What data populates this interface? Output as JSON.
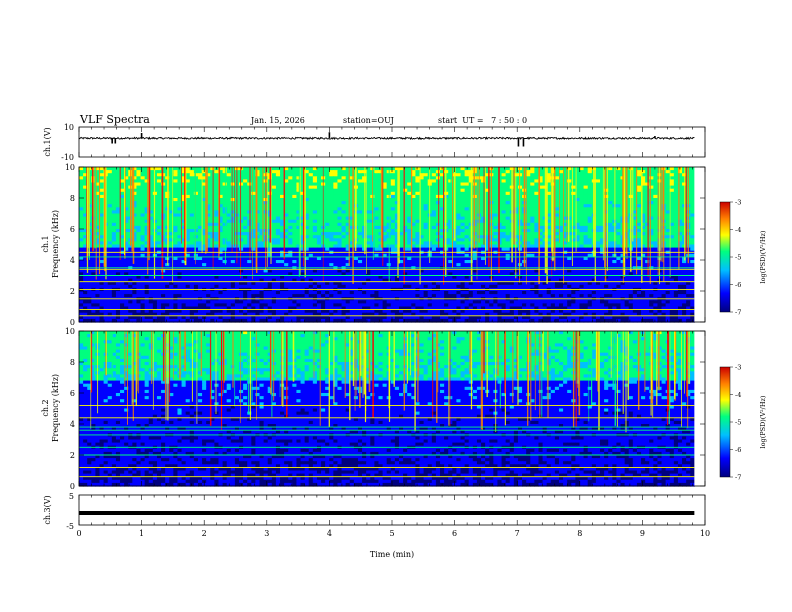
{
  "header": {
    "title": "VLF Spectra",
    "date": "Jan. 15, 2026",
    "station": "station=OUJ",
    "start_ut": "start  UT =   7 : 50 : 0"
  },
  "chart_data": [
    {
      "type": "line",
      "panel": "ch1-waveform",
      "ylabel": "ch.1(V)",
      "ylim": [
        -10,
        10
      ],
      "yticks": [
        "10",
        "-10"
      ],
      "baseline": 2.5,
      "spikes": [
        {
          "t": 0.53,
          "v": -1.0
        },
        {
          "t": 0.58,
          "v": -1.0
        },
        {
          "t": 1.0,
          "v": 6.0
        },
        {
          "t": 4.0,
          "v": 6.5
        },
        {
          "t": 7.02,
          "v": -3.0
        },
        {
          "t": 7.1,
          "v": -3.0
        },
        {
          "t": 9.2,
          "v": 4.0
        }
      ],
      "xlim": [
        0,
        10
      ],
      "color": "#000000"
    },
    {
      "type": "heatmap",
      "panel": "ch1-spectrogram",
      "ylabel": "ch.1\nFrequency (kHz)",
      "ylabel_lines": [
        "ch.1",
        "Frequency (kHz)"
      ],
      "xlim": [
        0,
        10
      ],
      "ylim": [
        0,
        10
      ],
      "yticks": [
        "0",
        "2",
        "4",
        "6",
        "8",
        "10"
      ],
      "data_extent_min": 9.83,
      "colorbar": {
        "label": "log(PSD)(V²/Hz)",
        "range": [
          -7,
          -3
        ],
        "ticks": [
          "-3",
          "-4",
          "-5",
          "-6",
          "-7"
        ]
      },
      "background_boundary_khz": 4.8,
      "narrowband_lines_khz": [
        0.4,
        0.8,
        1.5,
        2.1,
        2.6,
        3.0,
        3.4,
        3.5,
        4.2,
        4.5
      ],
      "color_scale": [
        "#00007f",
        "#0000ff",
        "#00bfff",
        "#00ff7f",
        "#ffff00",
        "#ff7f00",
        "#ff0000"
      ]
    },
    {
      "type": "heatmap",
      "panel": "ch2-spectrogram",
      "ylabel": "ch.2\nFrequency (kHz)",
      "ylabel_lines": [
        "ch.2",
        "Frequency (kHz)"
      ],
      "xlim": [
        0,
        10
      ],
      "ylim": [
        0,
        10
      ],
      "yticks": [
        "0",
        "2",
        "4",
        "6",
        "8",
        "10"
      ],
      "data_extent_min": 9.83,
      "colorbar": {
        "label": "log(PSD)(V²/Hz)",
        "range": [
          -7,
          -3
        ],
        "ticks": [
          "-3",
          "-4",
          "-5",
          "-6",
          "-7"
        ]
      },
      "background_boundary_khz": 6.8,
      "narrowband_lines_khz": [
        0.6,
        1.2,
        2.0,
        2.5,
        3.3,
        3.6,
        3.8,
        4.4,
        5.2
      ],
      "color_scale": [
        "#00007f",
        "#0000ff",
        "#00bfff",
        "#00ff7f",
        "#ffff00",
        "#ff7f00",
        "#ff0000"
      ]
    },
    {
      "type": "line",
      "panel": "ch3-waveform",
      "ylabel": "ch.3(V)",
      "ylim": [
        -5,
        5
      ],
      "yticks": [
        "5",
        "-5"
      ],
      "constant_value": -1.0,
      "xlim": [
        0,
        10
      ],
      "xlabel": "Time (min)",
      "xticks": [
        "0",
        "1",
        "2",
        "3",
        "4",
        "5",
        "6",
        "7",
        "8",
        "9",
        "10"
      ],
      "color": "#000000"
    }
  ]
}
